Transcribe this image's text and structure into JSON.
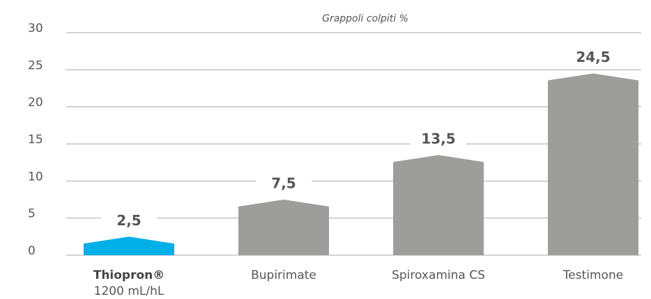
{
  "chart_data": {
    "type": "bar",
    "title": "Grappoli colpiti %",
    "categories": [
      "Thiopron®",
      "Bupirimate",
      "Spiroxamina CS",
      "Testimone"
    ],
    "category_note": "1200 mL/hL",
    "values": [
      2.5,
      7.5,
      13.5,
      24.5
    ],
    "value_labels": [
      "2,5",
      "7,5",
      "13,5",
      "24,5"
    ],
    "colors": [
      "#00aee8",
      "#9d9d9c",
      "#9d9d9c",
      "#9d9d9c"
    ],
    "ylim": [
      0,
      30
    ],
    "yticks": [
      0,
      5,
      10,
      15,
      20,
      25,
      30
    ],
    "grid": true
  }
}
